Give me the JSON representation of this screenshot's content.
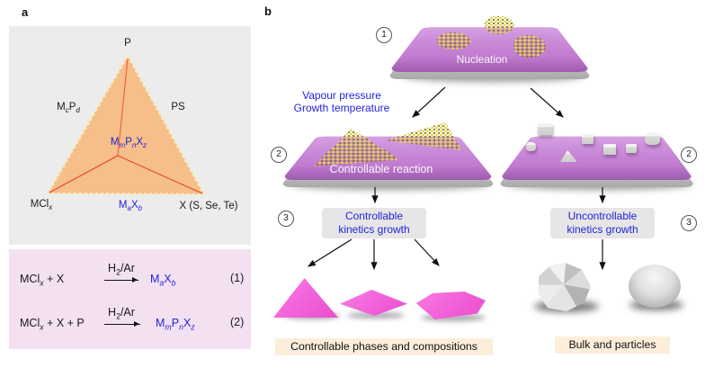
{
  "colors": {
    "accent_blue": "#2323dd",
    "triangle_fill": "#f6be88",
    "triangle_edge_dash": "#f8ecbe",
    "tie_line_red": "#e24a30",
    "panel_a_top_bg": "#ececec",
    "panel_a_bottom_bg": "#f3e1f2",
    "substrate_purple": "#c783d6",
    "atom_yellow": "#d9c92e",
    "flake_pink": "#f161d9",
    "caption_bg": "#fdeedc",
    "kinetics_box_bg": "#e6e6e6"
  },
  "panel_a": {
    "label": "a",
    "ternary": {
      "top_vertex": "P",
      "left_edge": "M_{c}P_{d}",
      "right_edge": "PS",
      "bottom_left_vertex": "MCl_{x}",
      "bottom_edge": "M_{a}X_{b}",
      "bottom_right_vertex": "X (S, Se, Te)",
      "center": "M_{m}P_{n}X_{z}"
    },
    "equations": [
      {
        "reactants": "MCl_{x} + X",
        "condition": "H_{2}/Ar",
        "product": "M_{a}X_{b}",
        "number": "(1)"
      },
      {
        "reactants": "MCl_{x} + X + P",
        "condition": "H_{2}/Ar",
        "product": "M_{m}P_{n}X_{z}",
        "number": "(2)"
      }
    ]
  },
  "panel_b": {
    "label": "b",
    "step1": "1",
    "step2": "2",
    "step3": "3",
    "nucleation_label": "Nucleation",
    "condition_line1": "Vapour pressure",
    "condition_line2": "Growth temperature",
    "controllable_reaction_label": "Controllable reaction",
    "left_box_line1": "Controllable",
    "left_box_line2": "kinetics growth",
    "right_box_line1": "Uncontrollable",
    "right_box_line2": "kinetics growth",
    "left_caption": "Controllable phases and compositions",
    "right_caption": "Bulk and particles"
  }
}
